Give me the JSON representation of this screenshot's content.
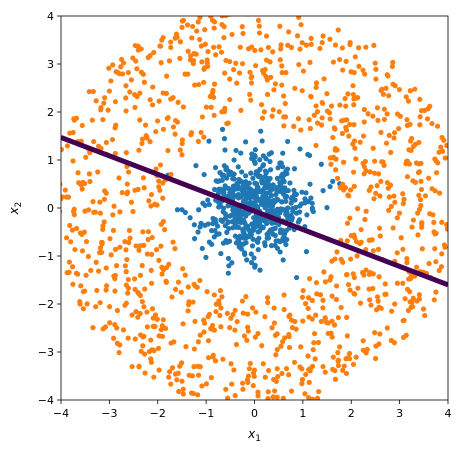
{
  "chart_data": {
    "type": "scatter",
    "title": "",
    "xlabel": "x1",
    "ylabel": "x2",
    "xlim": [
      -4,
      4
    ],
    "ylim": [
      -4,
      4
    ],
    "xticks": [
      -4,
      -3,
      -2,
      -1,
      0,
      1,
      2,
      3,
      4
    ],
    "yticks": [
      -4,
      -3,
      -2,
      -1,
      0,
      1,
      2,
      3,
      4
    ],
    "grid": false,
    "legend": "none",
    "series": [
      {
        "kind": "points",
        "color": "#1f77b4",
        "distribution": "gaussian cluster centered at origin",
        "center": [
          0,
          0
        ],
        "spread_sd": 0.55,
        "radius_max": 2.0,
        "count": 600
      },
      {
        "kind": "points",
        "color": "#ff7f0e",
        "distribution": "annulus",
        "radius_min": 1.8,
        "radius_max": 4.2,
        "count": 1100
      },
      {
        "kind": "line",
        "color": "#440154",
        "points": [
          [
            -4,
            1.47
          ],
          [
            4,
            -1.6
          ]
        ]
      }
    ]
  }
}
